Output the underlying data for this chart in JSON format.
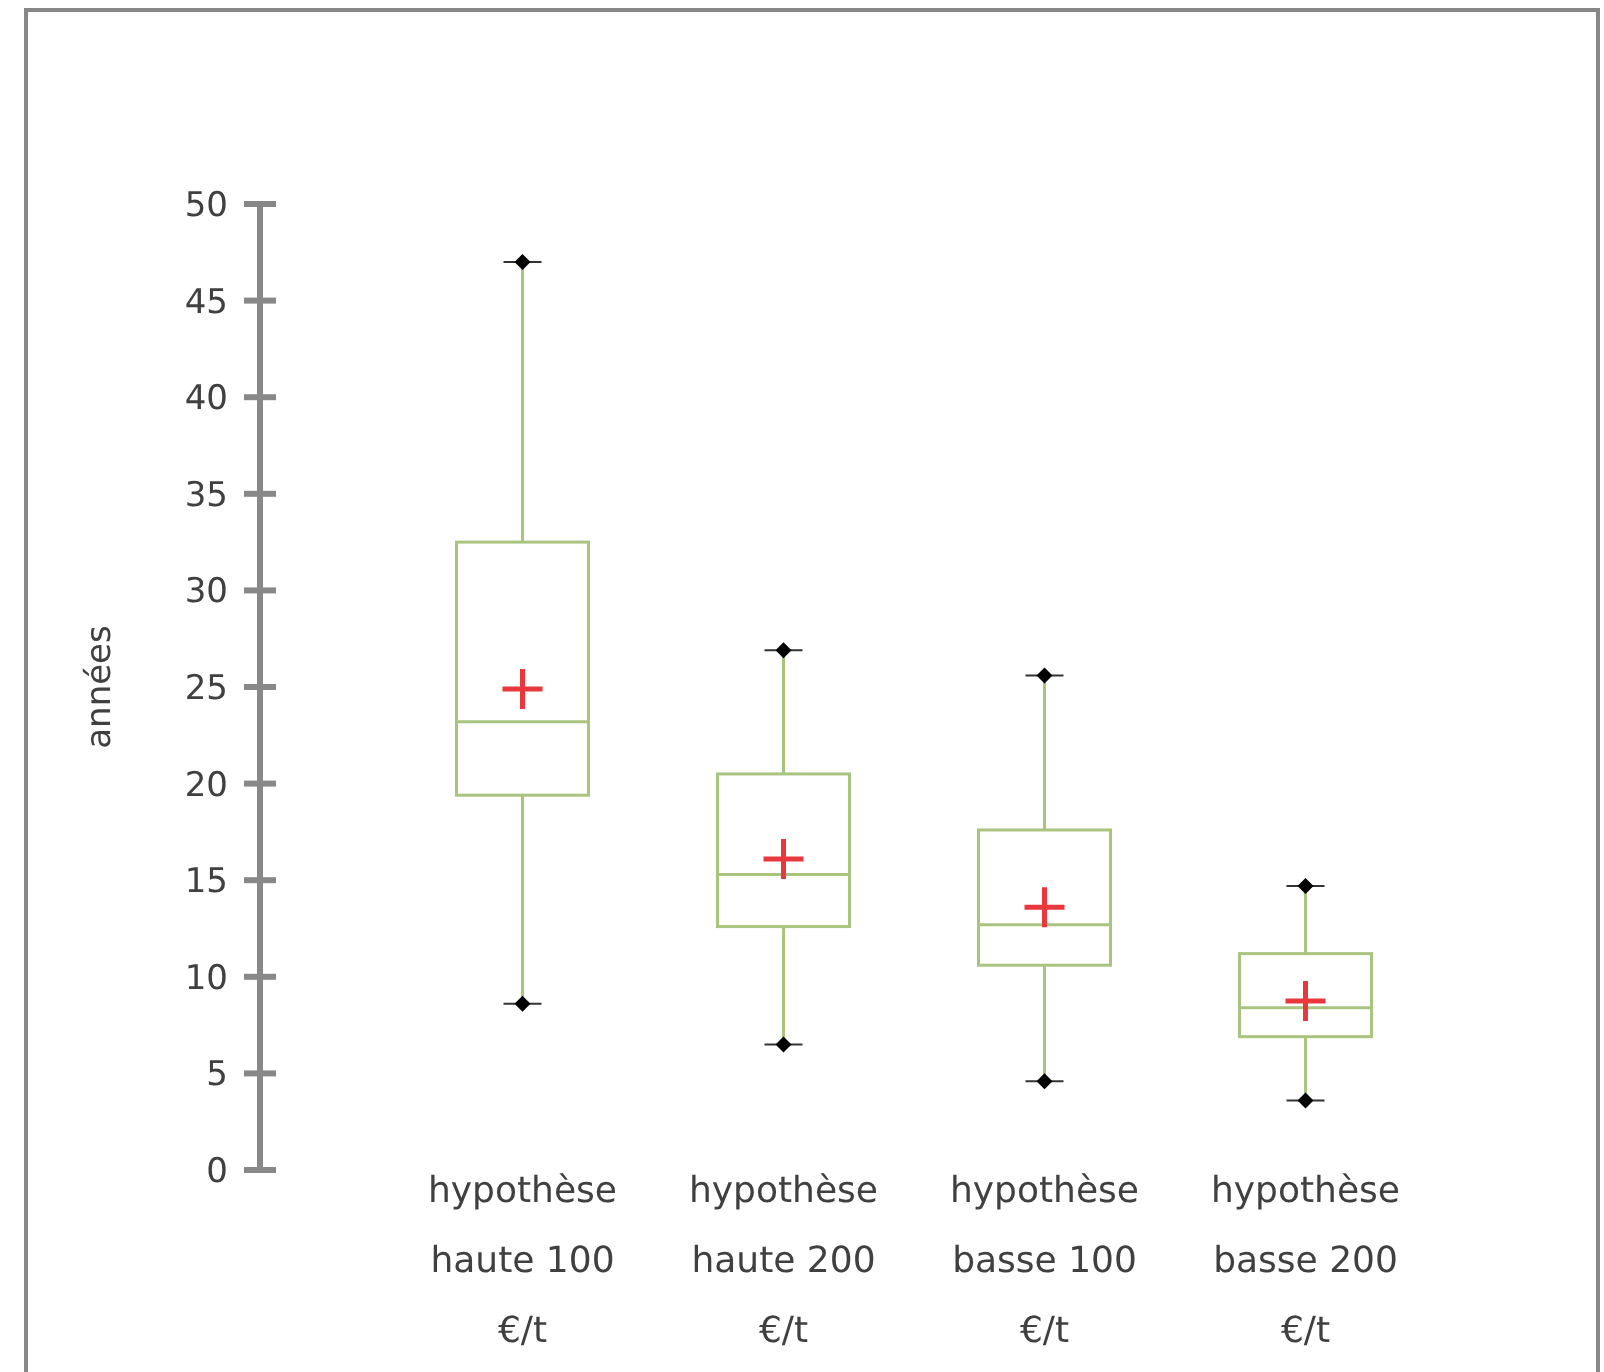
{
  "chart_data": {
    "type": "box",
    "ylabel": "années",
    "categories": [
      "hypothèse haute 100 €/t",
      "hypothèse haute 200 €/t",
      "hypothèse basse 100 €/t",
      "hypothèse basse 200 €/t"
    ],
    "boxes": [
      {
        "low": 8.6,
        "q1": 19.4,
        "median": 23.2,
        "q3": 32.5,
        "high": 47.0,
        "mean": 24.9
      },
      {
        "low": 6.5,
        "q1": 12.6,
        "median": 15.3,
        "q3": 20.5,
        "high": 26.9,
        "mean": 16.1
      },
      {
        "low": 4.6,
        "q1": 10.6,
        "median": 12.7,
        "q3": 17.6,
        "high": 25.6,
        "mean": 13.6
      },
      {
        "low": 3.6,
        "q1": 6.9,
        "median": 8.4,
        "q3": 11.2,
        "high": 14.7,
        "mean": 8.75
      }
    ],
    "color": "#a9c47f",
    "ylim": [
      0,
      50
    ],
    "yticks": [
      0,
      5,
      10,
      15,
      20,
      25,
      30,
      35,
      40,
      45,
      50
    ],
    "grid": false
  }
}
